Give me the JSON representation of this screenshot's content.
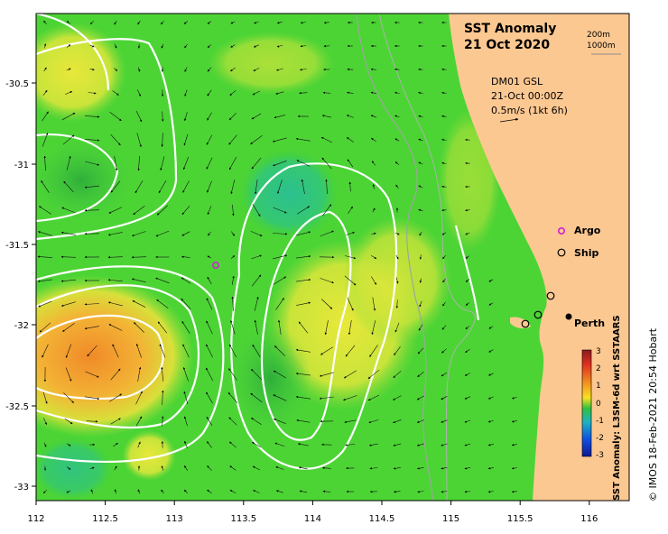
{
  "title": {
    "line1": "SST Anomaly",
    "line2": "21 Oct 2020"
  },
  "depth_legend": {
    "d1": "200m",
    "d2": "1000m"
  },
  "vector_legend": {
    "model": "DM01 GSL",
    "time": "21-Oct 00:00Z",
    "scale": "0.5m/s (1kt 6h)"
  },
  "markers": {
    "argo": "Argo",
    "ship": "Ship",
    "city": "Perth"
  },
  "axes": {
    "x_ticks": [
      "112",
      "112.5",
      "113",
      "113.5",
      "114",
      "114.5",
      "115",
      "115.5",
      "116"
    ],
    "y_ticks": [
      "-30.5",
      "-31",
      "-31.5",
      "-32",
      "-32.5",
      "-33"
    ]
  },
  "colorbar": {
    "label": "SST Anomaly: L3SM-6d wrt SSTAARS",
    "ticks": [
      "3",
      "2",
      "1",
      "0",
      "-1",
      "-2",
      "-3"
    ],
    "colors": [
      "#8b1a1a",
      "#e03020",
      "#f28b20",
      "#f8e020",
      "#30c040",
      "#20b0c0",
      "#1050e0",
      "#101890"
    ]
  },
  "copyright": "© IMOS 18-Feb-2021 20:54 Hobart",
  "colors": {
    "land": "#fcc892",
    "ocean_green": "#4cd435",
    "warm": "#f2a531"
  }
}
